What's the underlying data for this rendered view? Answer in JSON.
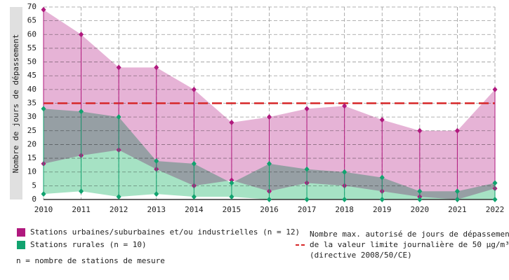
{
  "chart_data": {
    "type": "range-area",
    "ylabel": "Nombre de jours de dépassement",
    "x": [
      2010,
      2011,
      2012,
      2013,
      2014,
      2015,
      2016,
      2017,
      2018,
      2019,
      2020,
      2021,
      2022
    ],
    "xlim": [
      2010,
      2022
    ],
    "xticks": [
      2010,
      2011,
      2012,
      2013,
      2014,
      2015,
      2016,
      2017,
      2018,
      2019,
      2020,
      2021,
      2022
    ],
    "ylim": [
      0,
      70
    ],
    "yticks": [
      0,
      5,
      10,
      15,
      20,
      25,
      30,
      35,
      40,
      45,
      50,
      55,
      60,
      65,
      70
    ],
    "grid": true,
    "series": [
      {
        "name": "Stations urbaines/suburbaines et/ou industrielles (n = 12)",
        "color": "#b0197e",
        "fill": "#e6b3d6",
        "max": [
          69,
          60,
          48,
          48,
          40,
          28,
          30,
          33,
          34,
          29,
          25,
          25,
          40
        ],
        "min": [
          13,
          16,
          18,
          11,
          5,
          7,
          3,
          6,
          5,
          3,
          1,
          0,
          4
        ]
      },
      {
        "name": "Stations rurales (n = 10)",
        "color": "#11a36f",
        "fill": "#a6e2c4",
        "max": [
          33,
          32,
          30,
          14,
          13,
          6,
          13,
          11,
          10,
          8,
          3,
          3,
          6
        ],
        "min": [
          2,
          3,
          1,
          2,
          1,
          1,
          0,
          0,
          0,
          0,
          0,
          0,
          0
        ]
      }
    ],
    "threshold": 35,
    "threshold_color": "#d62728",
    "threshold_label": [
      "Nombre max. autorisé de jours de dépassement",
      "de la valeur limite journalière de 50 µg/m³",
      "(directive 2008/50/CE)"
    ],
    "note": "n = nombre de stations de mesure"
  }
}
